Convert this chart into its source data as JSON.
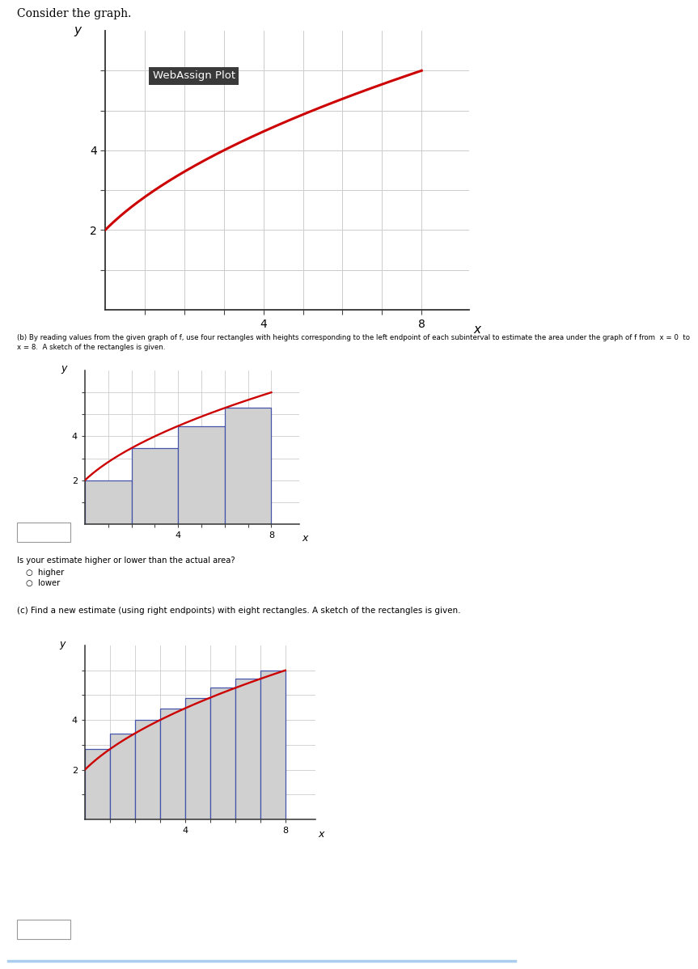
{
  "title_main": "Consider the graph.",
  "func_a": 2,
  "func_b": 1,
  "curve_color": "#cc0000",
  "rect_facecolor": "#d0d0d0",
  "rect_edgecolor": "#4455aa",
  "webassign_label": "WebAssign Plot",
  "webassign_bg": "#3a3a3a",
  "webassign_fg": "#ffffff",
  "text_b": "(b) By reading values from the given graph of f, use four rectangles with heights corresponding to the left endpoint of each subinterval to estimate the area under the graph of f from  x = 0  to\nx = 8.  A sketch of the rectangles is given.",
  "text_higher_lower": "Is your estimate higher or lower than the actual area?",
  "text_higher": "higher",
  "text_lower": "lower",
  "text_c": "(c) Find a new estimate (using right endpoints) with eight rectangles. A sketch of the rectangles is given.",
  "grid_color": "#cccccc",
  "label_x": "x",
  "label_y": "y",
  "plot1_xlim": [
    0,
    9.5
  ],
  "plot1_ylim": [
    0,
    7
  ],
  "plot2_xlim": [
    0,
    9.5
  ],
  "plot2_ylim": [
    0,
    7
  ],
  "plot3_xlim": [
    0,
    9.5
  ],
  "plot3_ylim": [
    0,
    7
  ]
}
